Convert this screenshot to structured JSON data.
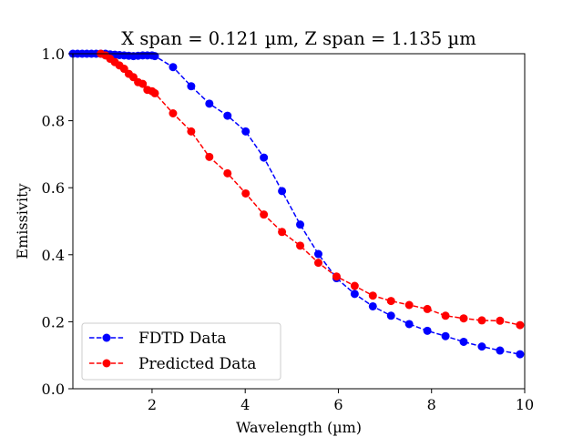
{
  "chart_data": {
    "type": "line",
    "title": "X span = 0.121 µm, Z span = 1.135 µm",
    "xlabel": "Wavelength (µm)",
    "ylabel": "Emissivity",
    "xlim": [
      0.3,
      10
    ],
    "ylim": [
      0,
      1
    ],
    "xticks": [
      2,
      4,
      6,
      8,
      10
    ],
    "yticks": [
      0.0,
      0.2,
      0.4,
      0.6,
      0.8,
      1.0
    ],
    "xtick_labels": [
      "2",
      "4",
      "6",
      "8",
      "10"
    ],
    "ytick_labels": [
      "0.0",
      "0.2",
      "0.4",
      "0.6",
      "0.8",
      "1.0"
    ],
    "grid": false,
    "legend_position": "lower-left",
    "series": [
      {
        "name": "FDTD Data",
        "color": "#0000ff",
        "line_style": "dashed",
        "marker": "circle",
        "x": [
          0.3,
          0.4,
          0.5,
          0.6,
          0.7,
          0.8,
          0.9,
          1.0,
          1.1,
          1.2,
          1.3,
          1.4,
          1.5,
          1.6,
          1.7,
          1.8,
          1.9,
          2.0,
          2.06,
          2.45,
          2.84,
          3.23,
          3.62,
          4.01,
          4.4,
          4.79,
          5.18,
          5.57,
          5.96,
          6.35,
          6.74,
          7.13,
          7.52,
          7.91,
          8.3,
          8.69,
          9.08,
          9.47,
          9.9
        ],
        "y": [
          1.0,
          1.0,
          1.0,
          1.0,
          1.0,
          1.0,
          1.0,
          1.0,
          0.998,
          0.997,
          0.996,
          0.995,
          0.994,
          0.993,
          0.994,
          0.995,
          0.995,
          0.995,
          0.993,
          0.96,
          0.903,
          0.851,
          0.815,
          0.768,
          0.69,
          0.59,
          0.49,
          0.402,
          0.33,
          0.283,
          0.246,
          0.218,
          0.193,
          0.173,
          0.157,
          0.14,
          0.126,
          0.114,
          0.103
        ]
      },
      {
        "name": "Predicted Data",
        "color": "#ff0000",
        "line_style": "dashed",
        "marker": "circle",
        "x": [
          0.9,
          1.0,
          1.1,
          1.2,
          1.3,
          1.4,
          1.5,
          1.6,
          1.7,
          1.8,
          1.9,
          2.0,
          2.06,
          2.45,
          2.84,
          3.23,
          3.62,
          4.01,
          4.4,
          4.79,
          5.18,
          5.57,
          5.96,
          6.35,
          6.74,
          7.13,
          7.52,
          7.91,
          8.3,
          8.69,
          9.08,
          9.47,
          9.9
        ],
        "y": [
          1.0,
          0.995,
          0.985,
          0.975,
          0.965,
          0.955,
          0.94,
          0.93,
          0.915,
          0.91,
          0.892,
          0.888,
          0.882,
          0.822,
          0.768,
          0.692,
          0.643,
          0.583,
          0.52,
          0.468,
          0.427,
          0.376,
          0.335,
          0.307,
          0.278,
          0.262,
          0.25,
          0.238,
          0.218,
          0.21,
          0.204,
          0.203,
          0.19
        ]
      }
    ]
  }
}
